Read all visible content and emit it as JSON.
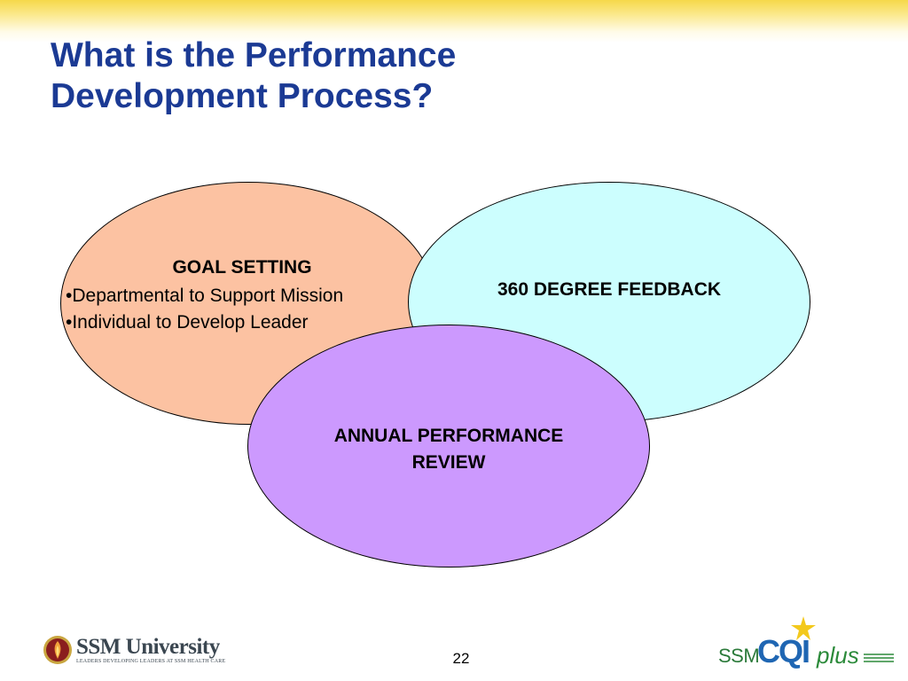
{
  "slide": {
    "title_lines": [
      "What is the Performance",
      "Development Process?"
    ],
    "page_number": "22"
  },
  "diagram": {
    "goal_setting": {
      "heading": "GOAL SETTING",
      "bullets": [
        "•Departmental to Support Mission",
        "•Individual to Develop Leader"
      ],
      "fill": "#fcc2a2"
    },
    "feedback": {
      "heading": "360 DEGREE FEEDBACK",
      "fill": "#ccfefe"
    },
    "annual_review": {
      "heading_lines": [
        "ANNUAL PERFORMANCE",
        "REVIEW"
      ],
      "fill": "#cc99fe"
    }
  },
  "footer": {
    "ssm_logo": {
      "name": "SSM University",
      "tagline": "LEADERS DEVELOPING LEADERS AT SSM HEALTH CARE",
      "icon": "ssm-seal-icon"
    },
    "cqi_logo": {
      "prefix": "SSM",
      "mark": "CQI",
      "suffix": "plus",
      "icon": "star-icon"
    }
  },
  "colors": {
    "title": "#1b3a94",
    "top_band": "#f6d84a"
  }
}
